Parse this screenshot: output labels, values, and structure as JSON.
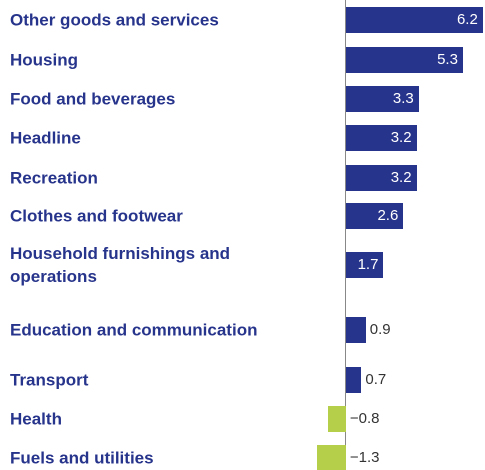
{
  "chart_data": {
    "type": "bar",
    "orientation": "horizontal",
    "categories": [
      "Other goods and services",
      "Housing",
      "Food and beverages",
      "Headline",
      "Recreation",
      "Clothes and footwear",
      "Household furnishings and operations",
      "Education and communication",
      "Transport",
      "Health",
      "Fuels and utilities"
    ],
    "values": [
      6.2,
      5.3,
      3.3,
      3.2,
      3.2,
      2.6,
      1.7,
      0.9,
      0.7,
      -0.8,
      -1.3
    ],
    "value_labels": [
      "6.2",
      "5.3",
      "3.3",
      "3.2",
      "3.2",
      "2.6",
      "1.7",
      "0.9",
      "0.7",
      "−0.8",
      "−1.3"
    ],
    "positive_color": "#27348b",
    "negative_color": "#b5cf4b",
    "xlim": [
      -1.4,
      6.3
    ]
  }
}
